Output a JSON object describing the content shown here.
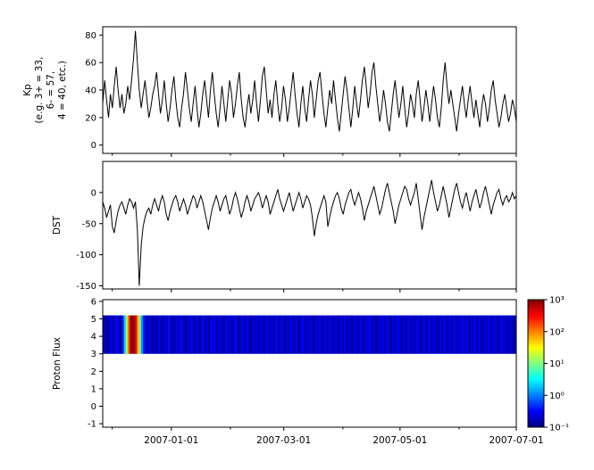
{
  "figure": {
    "background": "#ffffff",
    "frame_color": "#000000",
    "series_color": "#000000"
  },
  "x_axis": {
    "domain_days": [
      -36,
      181
    ],
    "ticks": [
      {
        "label": "2007-01-01",
        "day": 0
      },
      {
        "label": "2007-03-01",
        "day": 59
      },
      {
        "label": "2007-05-01",
        "day": 120
      },
      {
        "label": "2007-07-01",
        "day": 181
      }
    ],
    "minor_day_ticks": [
      -31,
      31,
      90,
      151
    ]
  },
  "chart_data": [
    {
      "type": "line",
      "name": "kp-index",
      "ylabel_lines": [
        "Kp",
        "(e.g. 3+ = 33,",
        "6- = 57,",
        "4 = 40, etc.)"
      ],
      "ylim": [
        -6,
        86
      ],
      "yticks": [
        0,
        20,
        40,
        60,
        80
      ],
      "x_unit": "days_from_2007-01-01",
      "values": [
        30,
        47,
        33,
        20,
        37,
        27,
        43,
        57,
        40,
        27,
        37,
        23,
        30,
        43,
        33,
        47,
        63,
        83,
        60,
        40,
        27,
        37,
        47,
        33,
        20,
        27,
        37,
        43,
        53,
        37,
        23,
        33,
        47,
        30,
        17,
        27,
        40,
        50,
        33,
        20,
        13,
        27,
        37,
        53,
        40,
        27,
        17,
        30,
        43,
        27,
        13,
        23,
        37,
        47,
        33,
        20,
        40,
        53,
        37,
        23,
        13,
        27,
        43,
        30,
        17,
        33,
        47,
        37,
        20,
        30,
        43,
        53,
        33,
        20,
        13,
        27,
        37,
        23,
        33,
        47,
        30,
        17,
        33,
        50,
        57,
        40,
        23,
        33,
        20,
        37,
        47,
        30,
        17,
        27,
        43,
        33,
        17,
        27,
        40,
        53,
        37,
        23,
        13,
        30,
        43,
        27,
        17,
        33,
        47,
        37,
        20,
        33,
        47,
        53,
        37,
        23,
        13,
        27,
        40,
        30,
        47,
        33,
        20,
        10,
        23,
        37,
        50,
        40,
        27,
        13,
        27,
        43,
        30,
        20,
        33,
        47,
        57,
        43,
        27,
        37,
        53,
        60,
        43,
        30,
        17,
        27,
        40,
        30,
        17,
        10,
        23,
        37,
        47,
        33,
        20,
        30,
        43,
        27,
        13,
        23,
        37,
        30,
        20,
        37,
        47,
        33,
        17,
        27,
        40,
        30,
        17,
        30,
        43,
        33,
        20,
        13,
        27,
        47,
        60,
        43,
        30,
        40,
        30,
        20,
        10,
        23,
        33,
        43,
        30,
        20,
        33,
        43,
        30,
        20,
        33,
        23,
        13,
        27,
        37,
        30,
        17,
        27,
        40,
        47,
        33,
        23,
        13,
        20,
        30,
        37,
        27,
        17,
        23,
        33,
        27,
        17
      ]
    },
    {
      "type": "line",
      "name": "dst-index",
      "ylabel_lines": [
        "DST"
      ],
      "ylim": [
        -155,
        50
      ],
      "yticks": [
        0,
        -50,
        -100,
        -150
      ],
      "x_unit": "days_from_2007-01-01",
      "values": [
        -15,
        -25,
        -40,
        -30,
        -20,
        -55,
        -65,
        -45,
        -30,
        -20,
        -15,
        -25,
        -35,
        -20,
        -10,
        -15,
        -25,
        -15,
        -60,
        -150,
        -85,
        -55,
        -40,
        -30,
        -25,
        -35,
        -20,
        -10,
        -20,
        -30,
        -15,
        -5,
        -15,
        -35,
        -45,
        -30,
        -20,
        -10,
        -5,
        -15,
        -30,
        -20,
        -10,
        -20,
        -35,
        -25,
        -15,
        -5,
        -10,
        -25,
        -15,
        -5,
        -15,
        -30,
        -45,
        -60,
        -40,
        -25,
        -15,
        -5,
        -15,
        -30,
        -20,
        -10,
        -5,
        -20,
        -35,
        -25,
        -10,
        0,
        -10,
        -25,
        -40,
        -30,
        -15,
        -5,
        -15,
        -30,
        -20,
        -10,
        -5,
        0,
        -10,
        -25,
        -15,
        -5,
        -15,
        -35,
        -25,
        -15,
        -5,
        5,
        -10,
        -20,
        -30,
        -20,
        -10,
        0,
        -15,
        -30,
        -20,
        -10,
        0,
        -10,
        -25,
        -15,
        -5,
        -10,
        -20,
        -40,
        -70,
        -50,
        -35,
        -25,
        -15,
        -5,
        -15,
        -55,
        -40,
        -25,
        -15,
        -5,
        0,
        -10,
        -25,
        -35,
        -20,
        -10,
        0,
        5,
        -10,
        -20,
        -10,
        0,
        -10,
        -25,
        -45,
        -30,
        -20,
        -10,
        0,
        10,
        -5,
        -20,
        -35,
        -25,
        -10,
        5,
        15,
        0,
        -15,
        -30,
        -50,
        -35,
        -20,
        -10,
        0,
        10,
        5,
        -10,
        -20,
        -10,
        0,
        15,
        -10,
        -35,
        -60,
        -40,
        -25,
        -10,
        5,
        20,
        0,
        -15,
        -30,
        -20,
        -5,
        10,
        -5,
        -20,
        -40,
        -25,
        -10,
        5,
        15,
        0,
        -15,
        -25,
        -10,
        0,
        -15,
        -30,
        -15,
        -5,
        5,
        -10,
        -25,
        -15,
        0,
        10,
        -5,
        -20,
        -35,
        -20,
        -10,
        0,
        5,
        -10,
        -20,
        -10,
        -5,
        -15,
        -10,
        0,
        -10,
        -5
      ]
    },
    {
      "type": "heatmap",
      "name": "proton-flux",
      "ylabel_lines": [
        "Proton Flux"
      ],
      "ylim": [
        -1.2,
        6.1
      ],
      "yticks": [
        -1,
        0,
        1,
        2,
        3,
        4,
        5,
        6
      ],
      "band_y": [
        3.0,
        5.2
      ],
      "scale": "log",
      "clim": [
        0.1,
        1000
      ],
      "colormap": "jet",
      "x_unit": "days_from_2007-01-01",
      "values": [
        0.15,
        0.22,
        0.12,
        0.18,
        0.28,
        0.14,
        0.2,
        0.32,
        0.18,
        0.12,
        0.4,
        2,
        15,
        120,
        600,
        1000,
        800,
        300,
        60,
        8,
        1.2,
        0.4,
        0.2,
        0.15,
        0.25,
        0.18,
        0.12,
        0.2,
        0.14,
        0.3,
        0.18,
        0.12,
        0.25,
        0.16,
        0.35,
        0.2,
        0.12,
        0.18,
        0.28,
        0.14,
        0.22,
        0.32,
        0.16,
        0.12,
        0.24,
        0.18,
        0.3,
        0.14,
        0.2,
        0.26,
        0.12,
        0.18,
        0.34,
        0.16,
        0.22,
        0.12,
        0.28,
        0.18,
        0.32,
        0.14,
        0.2,
        0.26,
        0.16,
        0.12,
        0.3,
        0.18,
        0.24,
        0.14,
        0.2,
        0.34,
        0.16,
        0.12,
        0.26,
        0.2,
        0.14,
        0.3,
        0.18,
        0.12,
        0.24,
        0.16,
        0.28,
        0.14,
        0.26,
        0.18,
        0.12,
        0.3,
        0.2,
        0.16,
        0.24,
        0.12,
        0.32,
        0.18,
        0.14,
        0.28,
        0.2,
        0.12,
        0.24,
        0.16,
        0.3,
        0.14,
        0.2,
        0.26,
        0.12,
        0.18,
        0.32,
        0.16,
        0.22,
        0.14,
        0.28,
        0.16,
        0.12,
        0.24,
        0.18,
        0.3,
        0.14,
        0.2,
        0.26,
        0.12,
        0.32,
        0.18,
        0.14,
        0.24,
        0.2,
        0.12,
        0.28,
        0.16,
        0.3,
        0.14,
        0.22,
        0.18,
        0.12,
        0.26,
        0.2,
        0.14,
        0.3,
        0.18,
        0.12,
        0.26,
        0.2,
        0.32,
        0.14,
        0.22,
        0.16,
        0.12,
        0.28,
        0.18,
        0.24,
        0.14,
        0.3,
        0.2,
        0.12,
        0.26,
        0.16,
        0.22,
        0.32,
        0.14,
        0.18,
        0.24,
        0.12,
        0.28,
        0.2,
        0.16,
        0.24,
        0.14,
        0.3,
        0.18,
        0.12,
        0.26,
        0.2,
        0.16,
        0.32,
        0.14,
        0.22,
        0.28,
        0.12,
        0.18,
        0.24,
        0.16,
        0.3,
        0.14,
        0.2,
        0.26,
        0.12,
        0.32,
        0.18,
        0.14,
        0.24,
        0.2,
        0.28,
        0.16,
        0.28,
        0.12,
        0.22,
        0.18,
        0.3,
        0.14,
        0.24,
        0.2,
        0.12,
        0.26,
        0.16,
        0.32,
        0.18,
        0.14,
        0.28,
        0.22,
        0.12,
        0.2,
        0.3,
        0.16,
        0.24,
        0.14,
        0.18,
        0.26,
        0.12,
        0.2
      ],
      "colorbar": {
        "tick_labels": [
          "10³",
          "10²",
          "10¹",
          "10⁰",
          "10⁻¹"
        ],
        "tick_exponents": [
          3,
          2,
          1,
          0,
          -1
        ]
      }
    }
  ]
}
